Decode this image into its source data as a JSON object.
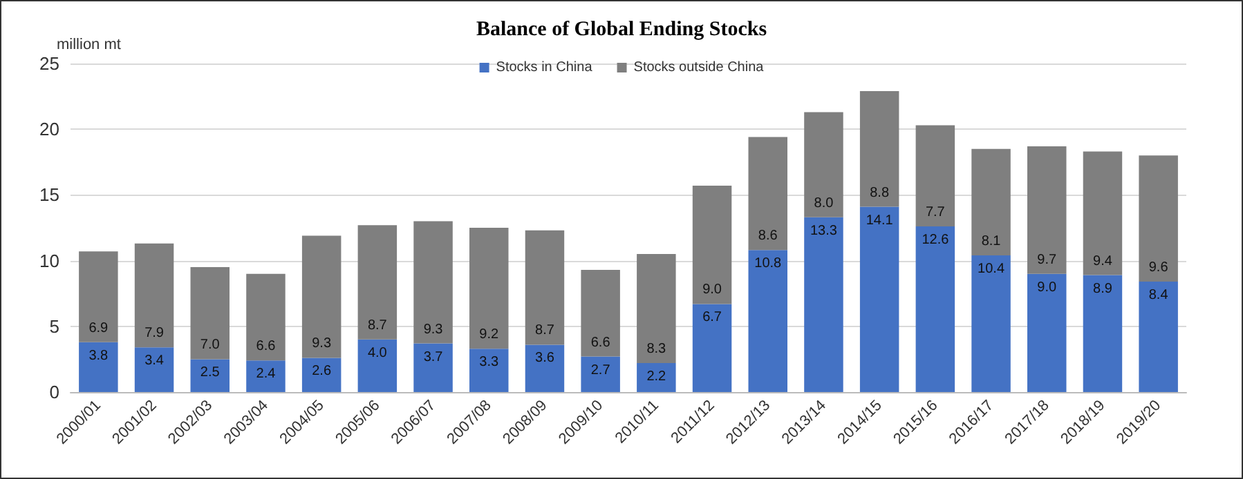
{
  "chart_data": {
    "type": "bar",
    "title": "Balance of Global Ending Stocks",
    "ylabel": "million mt",
    "categories": [
      "2000/01",
      "2001/02",
      "2002/03",
      "2003/04",
      "2004/05",
      "2005/06",
      "2006/07",
      "2007/08",
      "2008/09",
      "2009/10",
      "2010/11",
      "2011/12",
      "2012/13",
      "2013/14",
      "2014/15",
      "2015/16",
      "2016/17",
      "2017/18",
      "2018/19",
      "2019/20"
    ],
    "series": [
      {
        "name": "Stocks in China",
        "color": "#4472c4",
        "values": [
          3.8,
          3.4,
          2.5,
          2.4,
          2.6,
          4.0,
          3.7,
          3.3,
          3.6,
          2.7,
          2.2,
          6.7,
          10.8,
          13.3,
          14.1,
          12.6,
          10.4,
          9.0,
          8.9,
          8.4
        ],
        "value_labels": [
          "3.8",
          "3.4",
          "2.5",
          "2.4",
          "2.6",
          "4.0",
          "3.7",
          "3.3",
          "3.6",
          "2.7",
          "2.2",
          "6.7",
          "10.8",
          "13.3",
          "14.1",
          "12.6",
          "10.4",
          "9.0",
          "8.9",
          "8.4"
        ]
      },
      {
        "name": "Stocks outside China",
        "color": "#7f7f7f",
        "values": [
          6.9,
          7.9,
          7.0,
          6.6,
          9.3,
          8.7,
          9.3,
          9.2,
          8.7,
          6.6,
          8.3,
          9.0,
          8.6,
          8.0,
          8.8,
          7.7,
          8.1,
          9.7,
          9.4,
          9.6
        ],
        "value_labels": [
          "6.9",
          "7.9",
          "7.0",
          "6.6",
          "9.3",
          "8.7",
          "9.3",
          "9.2",
          "8.7",
          "6.6",
          "8.3",
          "9.0",
          "8.6",
          "8.0",
          "8.8",
          "7.7",
          "8.1",
          "9.7",
          "9.4",
          "9.6"
        ]
      }
    ],
    "stacked": true,
    "ylim": [
      0,
      25
    ],
    "yticks": [
      0,
      5,
      10,
      15,
      20,
      25
    ],
    "grid": "y",
    "legend": "top"
  }
}
